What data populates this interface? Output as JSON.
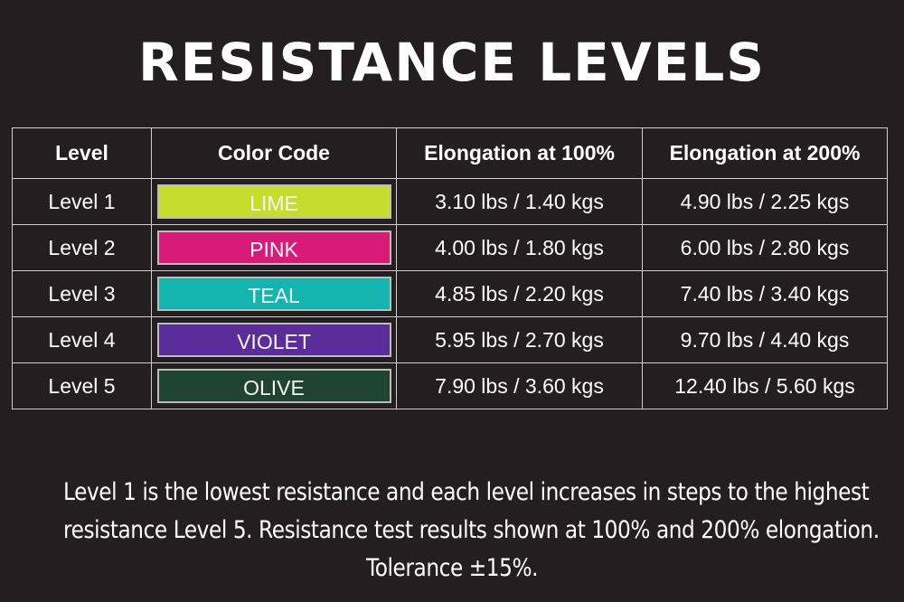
{
  "title": "RESISTANCE LEVELS",
  "table": {
    "headers": [
      "Level",
      "Color Code",
      "Elongation at 100%",
      "Elongation at 200%"
    ],
    "rows": [
      {
        "level": "Level 1",
        "color_label": "LIME",
        "color_hex": "#c7dd2e",
        "e100": "3.10 lbs / 1.40 kgs",
        "e200": "4.90 lbs / 2.25 kgs"
      },
      {
        "level": "Level 2",
        "color_label": "PINK",
        "color_hex": "#d81b78",
        "e100": "4.00 lbs / 1.80 kgs",
        "e200": "6.00 lbs / 2.80 kgs"
      },
      {
        "level": "Level 3",
        "color_label": "TEAL",
        "color_hex": "#13b5ae",
        "e100": "4.85 lbs / 2.20 kgs",
        "e200": "7.40 lbs / 3.40 kgs"
      },
      {
        "level": "Level 4",
        "color_label": "VIOLET",
        "color_hex": "#5a2d9a",
        "e100": "5.95 lbs / 2.70 kgs",
        "e200": "9.70 lbs / 4.40 kgs"
      },
      {
        "level": "Level 5",
        "color_label": "OLIVE",
        "color_hex": "#1f4431",
        "e100": "7.90 lbs / 3.60 kgs",
        "e200": "12.40 lbs / 5.60 kgs"
      }
    ]
  },
  "note": {
    "line1": "Level 1 is the lowest resistance and each level increases in steps to the highest",
    "line2": "resistance Level 5. Resistance test results shown at 100%  and 200% elongation.",
    "line3": "Tolerance ±15%."
  },
  "colors": {
    "background": "#231f20",
    "grid": "#cfcfcf",
    "text": "#ffffff"
  }
}
